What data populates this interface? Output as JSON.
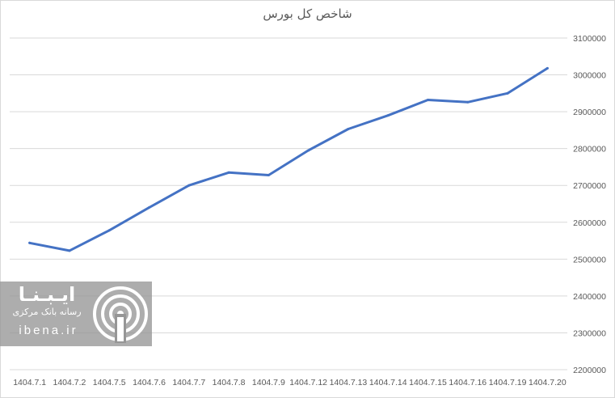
{
  "chart_data": {
    "type": "line",
    "title": "شاخص کل بورس",
    "categories": [
      "1404.7.1",
      "1404.7.2",
      "1404.7.5",
      "1404.7.6",
      "1404.7.7",
      "1404.7.8",
      "1404.7.9",
      "1404.7.12",
      "1404.7.13",
      "1404.7.14",
      "1404.7.15",
      "1404.7.16",
      "1404.7.19",
      "1404.7.20"
    ],
    "series": [
      {
        "values": [
          2544000,
          2523000,
          2578000,
          2640000,
          2700000,
          2735000,
          2728000,
          2795000,
          2853000,
          2890000,
          2932000,
          2926000,
          2950000,
          3018000
        ]
      }
    ],
    "ylim": [
      2200000,
      3100000
    ],
    "yticks": [
      "2200000",
      "2300000",
      "2400000",
      "2500000",
      "2600000",
      "2700000",
      "2800000",
      "2900000",
      "3000000",
      "3100000"
    ],
    "grid": true,
    "line_color": "#4472c4"
  },
  "watermark": {
    "logo_text": "ایـبـنـا",
    "subtitle": "رسانه بانک مرکزی",
    "site": "ibena.ir"
  }
}
